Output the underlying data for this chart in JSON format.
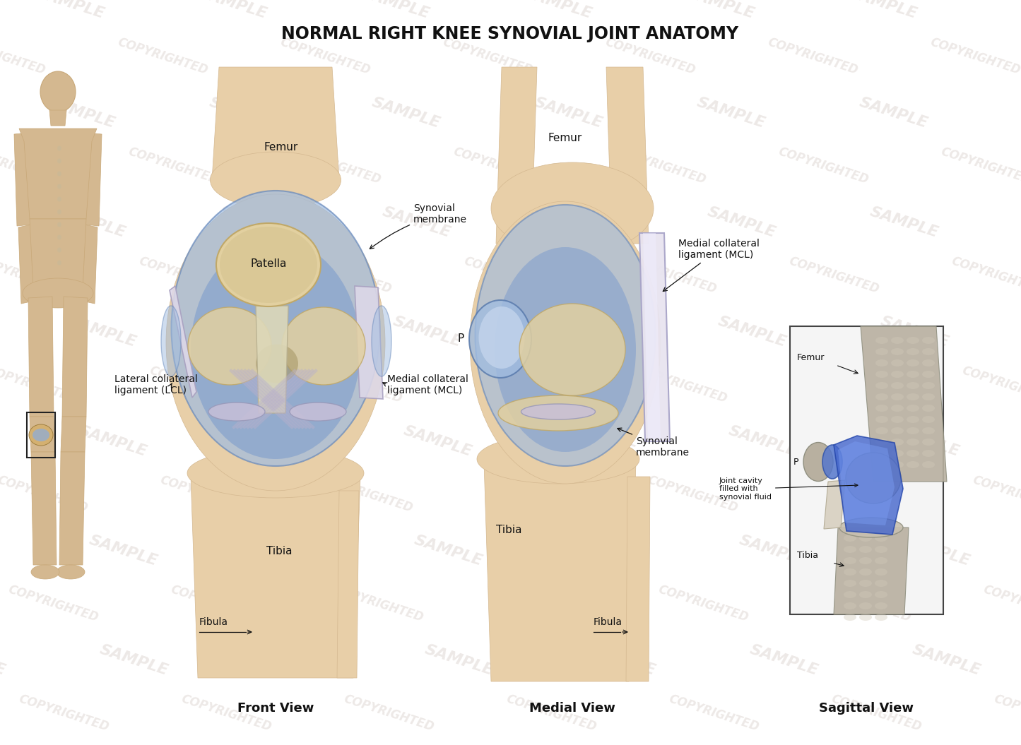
{
  "title": "NORMAL RIGHT KNEE SYNOVIAL JOINT ANATOMY",
  "title_fontsize": 17,
  "title_fontweight": "bold",
  "background_color": "#ffffff",
  "view_labels": [
    "Front View",
    "Medial View",
    "Sagittal View"
  ],
  "view_label_fontsize": 13,
  "view_label_fontweight": "bold",
  "skin_light": "#e8cfa8",
  "skin_mid": "#d4b890",
  "skin_dark": "#c8a878",
  "bone_color": "#e2d0a0",
  "bone_edge": "#c0a868",
  "synovial_blue": "#7899cc",
  "synovial_light": "#a0bce0",
  "synovial_dark": "#4466aa",
  "synovial_alpha": 0.65,
  "ligament_color": "#c8c0d8",
  "ligament_edge": "#9898b8",
  "text_color": "#111111",
  "label_fontsize": 10,
  "wm_color": "#c0b0a8",
  "wm_alpha": 0.28,
  "border_color": "#444444"
}
